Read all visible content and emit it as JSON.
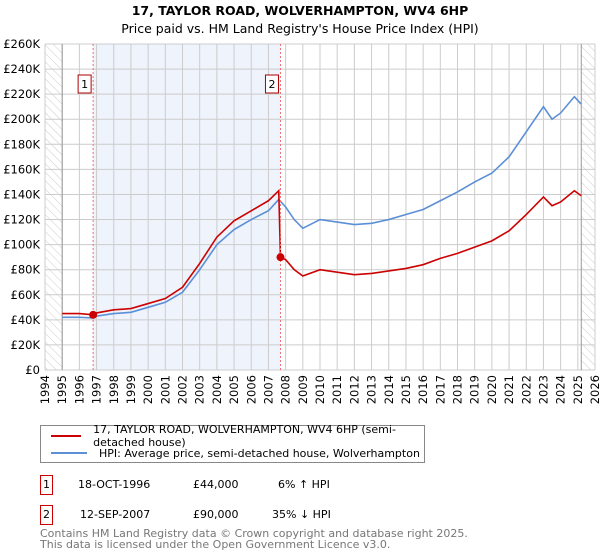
{
  "title": {
    "line1": "17, TAYLOR ROAD, WOLVERHAMPTON, WV4 6HP",
    "line2": "Price paid vs. HM Land Registry's House Price Index (HPI)"
  },
  "chart_data": {
    "type": "line",
    "xlim": [
      1994,
      2026
    ],
    "ylim": [
      0,
      260000
    ],
    "x_ticks": [
      "1994",
      "1995",
      "1996",
      "1997",
      "1998",
      "1999",
      "2000",
      "2001",
      "2002",
      "2003",
      "2004",
      "2005",
      "2006",
      "2007",
      "2008",
      "2009",
      "2010",
      "2011",
      "2012",
      "2013",
      "2014",
      "2015",
      "2016",
      "2017",
      "2018",
      "2019",
      "2020",
      "2021",
      "2022",
      "2023",
      "2024",
      "2025",
      "2026"
    ],
    "y_ticks": [
      "£0",
      "£20K",
      "£40K",
      "£60K",
      "£80K",
      "£100K",
      "£120K",
      "£140K",
      "£160K",
      "£180K",
      "£200K",
      "£220K",
      "£240K",
      "£260K"
    ],
    "grid": true,
    "data_start": 1995,
    "data_end": 2025.2,
    "series": [
      {
        "name": "17, TAYLOR ROAD, WOLVERHAMPTON, WV4 6HP (semi-detached house)",
        "color": "#cc0000",
        "points": [
          [
            1995,
            45
          ],
          [
            1996,
            45
          ],
          [
            1996.8,
            44
          ],
          [
            1997,
            45.5
          ],
          [
            1998,
            48
          ],
          [
            1999,
            49
          ],
          [
            2000,
            53
          ],
          [
            2001,
            57
          ],
          [
            2002,
            66
          ],
          [
            2003,
            85
          ],
          [
            2004,
            106
          ],
          [
            2005,
            119
          ],
          [
            2006,
            127
          ],
          [
            2007,
            135
          ],
          [
            2007.6,
            143
          ],
          [
            2007.7,
            90
          ],
          [
            2008,
            88
          ],
          [
            2008.5,
            80
          ],
          [
            2009,
            75
          ],
          [
            2010,
            80
          ],
          [
            2011,
            78
          ],
          [
            2012,
            76
          ],
          [
            2013,
            77
          ],
          [
            2014,
            79
          ],
          [
            2015,
            81
          ],
          [
            2016,
            84
          ],
          [
            2017,
            89
          ],
          [
            2018,
            93
          ],
          [
            2019,
            98
          ],
          [
            2020,
            103
          ],
          [
            2021,
            111
          ],
          [
            2022,
            124
          ],
          [
            2023,
            138
          ],
          [
            2023.5,
            131
          ],
          [
            2024,
            134
          ],
          [
            2024.8,
            143
          ],
          [
            2025.2,
            139
          ]
        ]
      },
      {
        "name": "HPI: Average price, semi-detached house, Wolverhampton",
        "color": "#5b8fd6",
        "points": [
          [
            1995,
            42
          ],
          [
            1996,
            42
          ],
          [
            1996.8,
            41.5
          ],
          [
            1997,
            43
          ],
          [
            1998,
            45
          ],
          [
            1999,
            46
          ],
          [
            2000,
            50
          ],
          [
            2001,
            54
          ],
          [
            2002,
            62
          ],
          [
            2003,
            80
          ],
          [
            2004,
            100
          ],
          [
            2005,
            112
          ],
          [
            2006,
            120
          ],
          [
            2007,
            127
          ],
          [
            2007.6,
            136
          ],
          [
            2008,
            130
          ],
          [
            2008.5,
            120
          ],
          [
            2009,
            113
          ],
          [
            2010,
            120
          ],
          [
            2011,
            118
          ],
          [
            2012,
            116
          ],
          [
            2013,
            117
          ],
          [
            2014,
            120
          ],
          [
            2015,
            124
          ],
          [
            2016,
            128
          ],
          [
            2017,
            135
          ],
          [
            2018,
            142
          ],
          [
            2019,
            150
          ],
          [
            2020,
            157
          ],
          [
            2021,
            170
          ],
          [
            2022,
            190
          ],
          [
            2023,
            210
          ],
          [
            2023.5,
            200
          ],
          [
            2024,
            205
          ],
          [
            2024.8,
            218
          ],
          [
            2025.2,
            212
          ]
        ]
      }
    ],
    "sales": [
      {
        "label": "1",
        "year": 1996.8,
        "value": 44
      },
      {
        "label": "2",
        "year": 2007.7,
        "value": 90
      }
    ],
    "value_unit": "thousands GBP"
  },
  "legend": {
    "red": "17, TAYLOR ROAD, WOLVERHAMPTON, WV4 6HP (semi-detached house)",
    "blue": "HPI: Average price, semi-detached house, Wolverhampton"
  },
  "transactions": [
    {
      "num": "1",
      "date": "18-OCT-1996",
      "price": "£44,000",
      "hpi": "6% ↑ HPI"
    },
    {
      "num": "2",
      "date": "12-SEP-2007",
      "price": "£90,000",
      "hpi": "35% ↓ HPI"
    }
  ],
  "footer": {
    "line1": "Contains HM Land Registry data © Crown copyright and database right 2025.",
    "line2": "This data is licensed under the Open Government Licence v3.0."
  }
}
